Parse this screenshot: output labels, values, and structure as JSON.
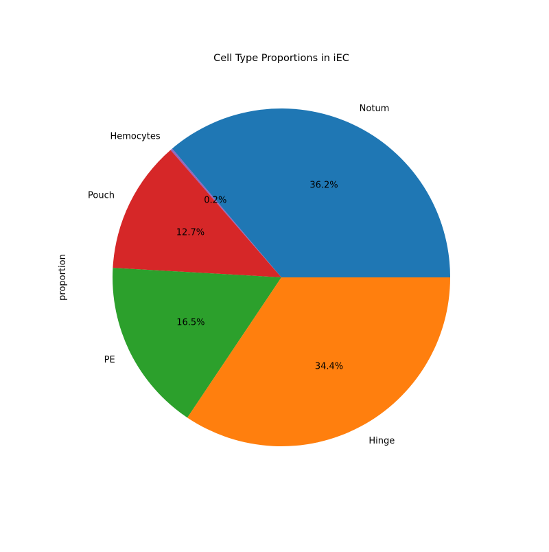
{
  "chart_data": {
    "type": "pie",
    "title": "Cell Type Proportions in iEC",
    "ylabel": "proportion",
    "categories": [
      "Notum",
      "Hemocytes",
      "Pouch",
      "PE",
      "Hinge"
    ],
    "values": [
      36.2,
      0.2,
      12.7,
      16.5,
      34.4
    ],
    "percent_labels": [
      "36.2%",
      "0.2%",
      "12.7%",
      "16.5%",
      "34.4%"
    ],
    "colors": [
      "#1f77b4",
      "#9467bd",
      "#d62728",
      "#2ca02c",
      "#ff7f0e"
    ],
    "start_angle_deg": 0,
    "direction": "counterclockwise",
    "legend": "none"
  }
}
